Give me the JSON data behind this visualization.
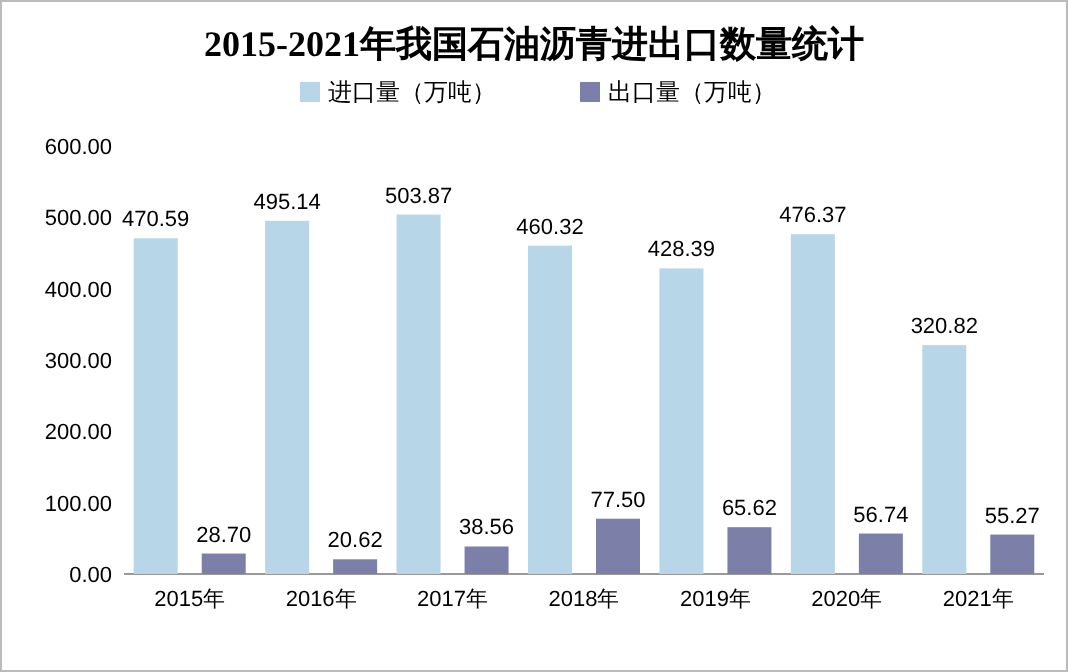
{
  "chart_data": {
    "type": "bar",
    "title": "2015-2021年我国石油沥青进出口数量统计",
    "categories": [
      "2015年",
      "2016年",
      "2017年",
      "2018年",
      "2019年",
      "2020年",
      "2021年"
    ],
    "series": [
      {
        "name": "进口量（万吨）",
        "color": "#b7d6e8",
        "values": [
          470.59,
          495.14,
          503.87,
          460.32,
          428.39,
          476.37,
          320.82
        ],
        "value_labels": [
          "470.59",
          "495.14",
          "503.87",
          "460.32",
          "428.39",
          "476.37",
          "320.82"
        ]
      },
      {
        "name": "出口量（万吨）",
        "color": "#7c80a8",
        "values": [
          28.7,
          20.62,
          38.56,
          77.5,
          65.62,
          56.74,
          55.27
        ],
        "value_labels": [
          "28.70",
          "20.62",
          "38.56",
          "77.50",
          "65.62",
          "56.74",
          "55.27"
        ]
      }
    ],
    "ylim": [
      0,
      600
    ],
    "yticks": [
      {
        "value": 0,
        "label": "0.00"
      },
      {
        "value": 100,
        "label": "100.00"
      },
      {
        "value": 200,
        "label": "200.00"
      },
      {
        "value": 300,
        "label": "300.00"
      },
      {
        "value": 400,
        "label": "400.00"
      },
      {
        "value": 500,
        "label": "500.00"
      },
      {
        "value": 600,
        "label": "600.00"
      }
    ],
    "grid": false,
    "legend": "top"
  }
}
